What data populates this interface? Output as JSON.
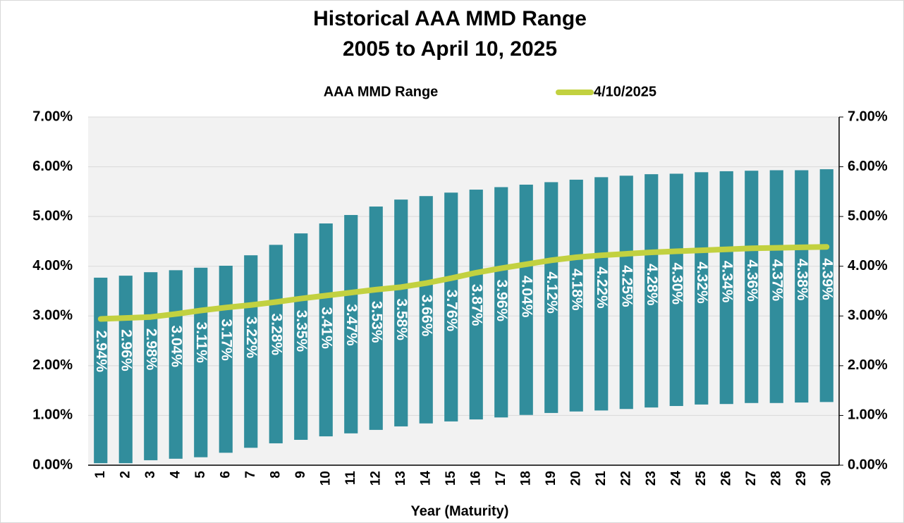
{
  "chart_data": {
    "type": "floating-bar-line",
    "title": "Historical AAA MMD Range",
    "subtitle": "2005 to April 10, 2025",
    "x_label": "Year (Maturity)",
    "categories": [
      "1",
      "2",
      "3",
      "4",
      "5",
      "6",
      "7",
      "8",
      "9",
      "10",
      "11",
      "12",
      "13",
      "14",
      "15",
      "16",
      "17",
      "18",
      "19",
      "20",
      "21",
      "22",
      "23",
      "24",
      "25",
      "26",
      "27",
      "28",
      "29",
      "30"
    ],
    "series": [
      {
        "name": "AAA MMD Range",
        "color": "#318d9c",
        "low": [
          0.04,
          0.04,
          0.1,
          0.13,
          0.16,
          0.25,
          0.35,
          0.44,
          0.51,
          0.58,
          0.64,
          0.71,
          0.78,
          0.84,
          0.88,
          0.92,
          0.96,
          1.01,
          1.05,
          1.08,
          1.1,
          1.13,
          1.16,
          1.19,
          1.22,
          1.23,
          1.25,
          1.25,
          1.26,
          1.27
        ],
        "high": [
          3.77,
          3.81,
          3.88,
          3.92,
          3.97,
          4.01,
          4.22,
          4.43,
          4.66,
          4.86,
          5.03,
          5.2,
          5.34,
          5.41,
          5.48,
          5.54,
          5.59,
          5.64,
          5.69,
          5.74,
          5.79,
          5.82,
          5.85,
          5.86,
          5.89,
          5.91,
          5.92,
          5.93,
          5.93,
          5.95
        ]
      },
      {
        "name": "4/10/2025",
        "color": "#c2d140",
        "values": [
          2.94,
          2.96,
          2.98,
          3.04,
          3.11,
          3.17,
          3.22,
          3.28,
          3.35,
          3.41,
          3.47,
          3.53,
          3.58,
          3.66,
          3.76,
          3.87,
          3.96,
          4.04,
          4.12,
          4.18,
          4.22,
          4.25,
          4.28,
          4.3,
          4.32,
          4.34,
          4.36,
          4.37,
          4.38,
          4.39
        ],
        "value_labels": [
          "2.94%",
          "2.96%",
          "2.98%",
          "3.04%",
          "3.11%",
          "3.17%",
          "3.22%",
          "3.28%",
          "3.35%",
          "3.41%",
          "3.47%",
          "3.53%",
          "3.58%",
          "3.66%",
          "3.76%",
          "3.87%",
          "3.96%",
          "4.04%",
          "4.12%",
          "4.18%",
          "4.22%",
          "4.25%",
          "4.28%",
          "4.30%",
          "4.32%",
          "4.34%",
          "4.36%",
          "4.37%",
          "4.38%",
          "4.39%"
        ]
      }
    ],
    "ylim": [
      0,
      7
    ],
    "yticks": [
      {
        "value": 0,
        "label": "0.00%"
      },
      {
        "value": 1,
        "label": "1.00%"
      },
      {
        "value": 2,
        "label": "2.00%"
      },
      {
        "value": 3,
        "label": "3.00%"
      },
      {
        "value": 4,
        "label": "4.00%"
      },
      {
        "value": 5,
        "label": "5.00%"
      },
      {
        "value": 6,
        "label": "6.00%"
      },
      {
        "value": 7,
        "label": "7.00%"
      }
    ],
    "y2lim": [
      0,
      7
    ],
    "y2ticks": [
      {
        "value": 0,
        "label": "0.00%"
      },
      {
        "value": 1,
        "label": "1.00%"
      },
      {
        "value": 2,
        "label": "2.00%"
      },
      {
        "value": 3,
        "label": "3.00%"
      },
      {
        "value": 4,
        "label": "4.00%"
      },
      {
        "value": 5,
        "label": "5.00%"
      },
      {
        "value": 6,
        "label": "6.00%"
      },
      {
        "value": 7,
        "label": "7.00%"
      }
    ],
    "grid": true
  }
}
